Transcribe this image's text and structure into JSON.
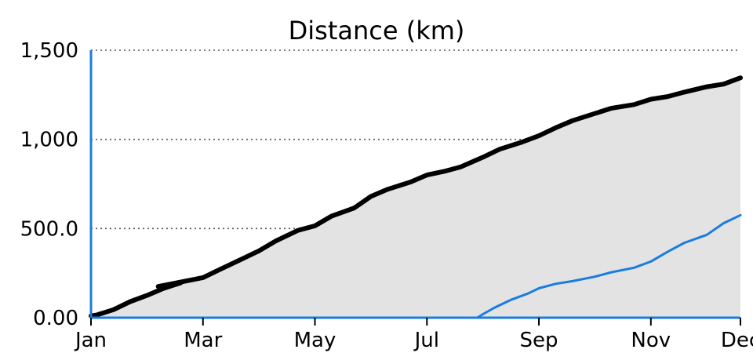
{
  "chart_data": {
    "type": "area",
    "title": "Distance (km)",
    "xlabel": "",
    "ylabel": "",
    "x_ticks": [
      "Jan",
      "Mar",
      "May",
      "Jul",
      "Sep",
      "Nov",
      "Dec"
    ],
    "x_tick_months": [
      0,
      2,
      4,
      6,
      8,
      10,
      11.6
    ],
    "xlim": [
      0,
      11.6
    ],
    "y_ticks": [
      {
        "value": 0,
        "label": "0.00"
      },
      {
        "value": 500,
        "label": "500.0"
      },
      {
        "value": 1000,
        "label": "1,000"
      },
      {
        "value": 1500,
        "label": "1,500"
      }
    ],
    "ylim": [
      0,
      1500
    ],
    "grid": "horizontal dotted",
    "series": [
      {
        "style": "area",
        "line_color": "#000000",
        "fill_color": "#e3e3e3",
        "x": [
          0.0,
          0.1,
          0.4,
          0.7,
          1.0,
          1.3,
          1.6,
          1.2,
          2.0,
          2.3,
          2.6,
          3.0,
          3.3,
          3.7,
          4.0,
          4.3,
          4.7,
          5.0,
          5.3,
          5.7,
          6.0,
          6.3,
          6.6,
          7.0,
          7.3,
          7.7,
          8.0,
          8.3,
          8.6,
          9.0,
          9.3,
          9.7,
          10.0,
          10.3,
          10.6,
          11.0,
          11.3,
          11.6
        ],
        "y": [
          10,
          15,
          45,
          90,
          125,
          165,
          195,
          175,
          225,
          270,
          315,
          375,
          430,
          490,
          515,
          570,
          615,
          680,
          720,
          760,
          800,
          820,
          845,
          900,
          945,
          985,
          1020,
          1065,
          1105,
          1145,
          1175,
          1195,
          1225,
          1240,
          1265,
          1295,
          1310,
          1345
        ]
      },
      {
        "style": "line",
        "line_color": "#1a7ce0",
        "x": [
          6.9,
          7.0,
          7.2,
          7.5,
          7.8,
          8.0,
          8.3,
          8.6,
          9.0,
          9.3,
          9.7,
          10.0,
          10.3,
          10.6,
          11.0,
          11.3,
          11.6
        ],
        "y": [
          0,
          20,
          55,
          100,
          135,
          165,
          190,
          205,
          230,
          255,
          280,
          315,
          370,
          420,
          465,
          530,
          575
        ]
      }
    ]
  }
}
